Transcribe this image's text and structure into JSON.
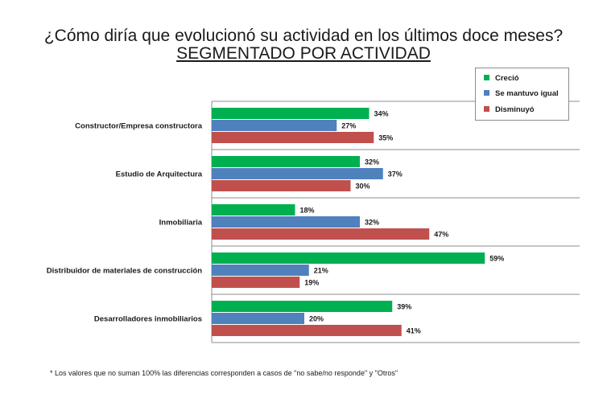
{
  "title": "¿Cómo diría que evolucionó su actividad en los últimos doce meses?",
  "subtitle": "SEGMENTADO POR ACTIVIDAD",
  "footnote": "* Los valores que no suman 100% las diferencias corresponden a casos de \"no sabe/no responde\" y \"Otros\"",
  "chart_data": {
    "type": "bar",
    "orientation": "horizontal",
    "categories": [
      "Constructor/Empresa constructora",
      "Estudio de Arquitectura",
      "Inmobiliaria",
      "Distribuidor de materiales de construcción",
      "Desarrolladores inmobiliarios"
    ],
    "series": [
      {
        "name": "Creció",
        "color": "#00b050",
        "values": [
          34,
          32,
          18,
          59,
          39
        ]
      },
      {
        "name": "Se mantuvo igual",
        "color": "#4f81bd",
        "values": [
          27,
          37,
          32,
          21,
          20
        ]
      },
      {
        "name": "Disminuyó",
        "color": "#c0504d",
        "values": [
          35,
          30,
          47,
          19,
          41
        ]
      }
    ],
    "value_suffix": "%",
    "xlim": [
      0,
      100
    ],
    "grid": false,
    "legend_position": "top-right"
  }
}
